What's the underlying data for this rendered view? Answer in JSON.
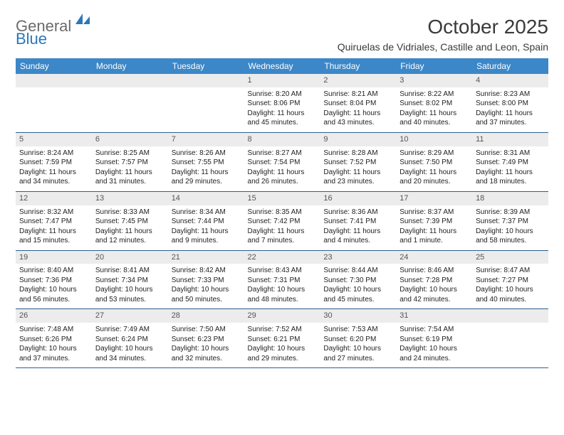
{
  "logo": {
    "word1": "General",
    "word2": "Blue"
  },
  "title": "October 2025",
  "location": "Quiruelas de Vidriales, Castille and Leon, Spain",
  "colors": {
    "header_bg": "#3b87c8",
    "header_text": "#ffffff",
    "row_divider": "#2f5f8c",
    "daynum_bg": "#ececec",
    "daynum_text": "#555555",
    "body_text": "#222222",
    "logo_gray": "#6b6b6b",
    "logo_blue": "#2a77bb",
    "page_bg": "#ffffff"
  },
  "typography": {
    "title_fontsize": 28,
    "location_fontsize": 14,
    "header_fontsize": 12,
    "cell_fontsize": 10,
    "daynum_fontsize": 11,
    "font_family": "Arial"
  },
  "dayHeaders": [
    "Sunday",
    "Monday",
    "Tuesday",
    "Wednesday",
    "Thursday",
    "Friday",
    "Saturday"
  ],
  "weeks": [
    [
      null,
      null,
      null,
      {
        "n": "1",
        "sr": "Sunrise: 8:20 AM",
        "ss": "Sunset: 8:06 PM",
        "d1": "Daylight: 11 hours",
        "d2": "and 45 minutes."
      },
      {
        "n": "2",
        "sr": "Sunrise: 8:21 AM",
        "ss": "Sunset: 8:04 PM",
        "d1": "Daylight: 11 hours",
        "d2": "and 43 minutes."
      },
      {
        "n": "3",
        "sr": "Sunrise: 8:22 AM",
        "ss": "Sunset: 8:02 PM",
        "d1": "Daylight: 11 hours",
        "d2": "and 40 minutes."
      },
      {
        "n": "4",
        "sr": "Sunrise: 8:23 AM",
        "ss": "Sunset: 8:00 PM",
        "d1": "Daylight: 11 hours",
        "d2": "and 37 minutes."
      }
    ],
    [
      {
        "n": "5",
        "sr": "Sunrise: 8:24 AM",
        "ss": "Sunset: 7:59 PM",
        "d1": "Daylight: 11 hours",
        "d2": "and 34 minutes."
      },
      {
        "n": "6",
        "sr": "Sunrise: 8:25 AM",
        "ss": "Sunset: 7:57 PM",
        "d1": "Daylight: 11 hours",
        "d2": "and 31 minutes."
      },
      {
        "n": "7",
        "sr": "Sunrise: 8:26 AM",
        "ss": "Sunset: 7:55 PM",
        "d1": "Daylight: 11 hours",
        "d2": "and 29 minutes."
      },
      {
        "n": "8",
        "sr": "Sunrise: 8:27 AM",
        "ss": "Sunset: 7:54 PM",
        "d1": "Daylight: 11 hours",
        "d2": "and 26 minutes."
      },
      {
        "n": "9",
        "sr": "Sunrise: 8:28 AM",
        "ss": "Sunset: 7:52 PM",
        "d1": "Daylight: 11 hours",
        "d2": "and 23 minutes."
      },
      {
        "n": "10",
        "sr": "Sunrise: 8:29 AM",
        "ss": "Sunset: 7:50 PM",
        "d1": "Daylight: 11 hours",
        "d2": "and 20 minutes."
      },
      {
        "n": "11",
        "sr": "Sunrise: 8:31 AM",
        "ss": "Sunset: 7:49 PM",
        "d1": "Daylight: 11 hours",
        "d2": "and 18 minutes."
      }
    ],
    [
      {
        "n": "12",
        "sr": "Sunrise: 8:32 AM",
        "ss": "Sunset: 7:47 PM",
        "d1": "Daylight: 11 hours",
        "d2": "and 15 minutes."
      },
      {
        "n": "13",
        "sr": "Sunrise: 8:33 AM",
        "ss": "Sunset: 7:45 PM",
        "d1": "Daylight: 11 hours",
        "d2": "and 12 minutes."
      },
      {
        "n": "14",
        "sr": "Sunrise: 8:34 AM",
        "ss": "Sunset: 7:44 PM",
        "d1": "Daylight: 11 hours",
        "d2": "and 9 minutes."
      },
      {
        "n": "15",
        "sr": "Sunrise: 8:35 AM",
        "ss": "Sunset: 7:42 PM",
        "d1": "Daylight: 11 hours",
        "d2": "and 7 minutes."
      },
      {
        "n": "16",
        "sr": "Sunrise: 8:36 AM",
        "ss": "Sunset: 7:41 PM",
        "d1": "Daylight: 11 hours",
        "d2": "and 4 minutes."
      },
      {
        "n": "17",
        "sr": "Sunrise: 8:37 AM",
        "ss": "Sunset: 7:39 PM",
        "d1": "Daylight: 11 hours",
        "d2": "and 1 minute."
      },
      {
        "n": "18",
        "sr": "Sunrise: 8:39 AM",
        "ss": "Sunset: 7:37 PM",
        "d1": "Daylight: 10 hours",
        "d2": "and 58 minutes."
      }
    ],
    [
      {
        "n": "19",
        "sr": "Sunrise: 8:40 AM",
        "ss": "Sunset: 7:36 PM",
        "d1": "Daylight: 10 hours",
        "d2": "and 56 minutes."
      },
      {
        "n": "20",
        "sr": "Sunrise: 8:41 AM",
        "ss": "Sunset: 7:34 PM",
        "d1": "Daylight: 10 hours",
        "d2": "and 53 minutes."
      },
      {
        "n": "21",
        "sr": "Sunrise: 8:42 AM",
        "ss": "Sunset: 7:33 PM",
        "d1": "Daylight: 10 hours",
        "d2": "and 50 minutes."
      },
      {
        "n": "22",
        "sr": "Sunrise: 8:43 AM",
        "ss": "Sunset: 7:31 PM",
        "d1": "Daylight: 10 hours",
        "d2": "and 48 minutes."
      },
      {
        "n": "23",
        "sr": "Sunrise: 8:44 AM",
        "ss": "Sunset: 7:30 PM",
        "d1": "Daylight: 10 hours",
        "d2": "and 45 minutes."
      },
      {
        "n": "24",
        "sr": "Sunrise: 8:46 AM",
        "ss": "Sunset: 7:28 PM",
        "d1": "Daylight: 10 hours",
        "d2": "and 42 minutes."
      },
      {
        "n": "25",
        "sr": "Sunrise: 8:47 AM",
        "ss": "Sunset: 7:27 PM",
        "d1": "Daylight: 10 hours",
        "d2": "and 40 minutes."
      }
    ],
    [
      {
        "n": "26",
        "sr": "Sunrise: 7:48 AM",
        "ss": "Sunset: 6:26 PM",
        "d1": "Daylight: 10 hours",
        "d2": "and 37 minutes."
      },
      {
        "n": "27",
        "sr": "Sunrise: 7:49 AM",
        "ss": "Sunset: 6:24 PM",
        "d1": "Daylight: 10 hours",
        "d2": "and 34 minutes."
      },
      {
        "n": "28",
        "sr": "Sunrise: 7:50 AM",
        "ss": "Sunset: 6:23 PM",
        "d1": "Daylight: 10 hours",
        "d2": "and 32 minutes."
      },
      {
        "n": "29",
        "sr": "Sunrise: 7:52 AM",
        "ss": "Sunset: 6:21 PM",
        "d1": "Daylight: 10 hours",
        "d2": "and 29 minutes."
      },
      {
        "n": "30",
        "sr": "Sunrise: 7:53 AM",
        "ss": "Sunset: 6:20 PM",
        "d1": "Daylight: 10 hours",
        "d2": "and 27 minutes."
      },
      {
        "n": "31",
        "sr": "Sunrise: 7:54 AM",
        "ss": "Sunset: 6:19 PM",
        "d1": "Daylight: 10 hours",
        "d2": "and 24 minutes."
      },
      null
    ]
  ]
}
